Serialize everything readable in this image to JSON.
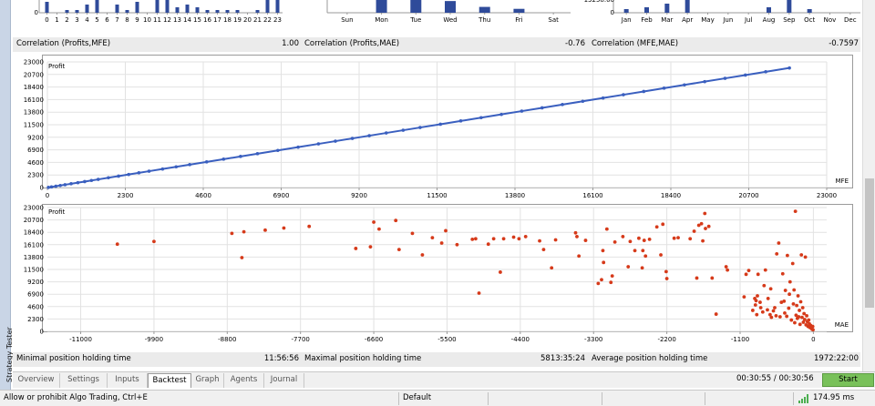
{
  "top_charts": [
    {
      "type": "bar",
      "categories": [
        "0",
        "1",
        "2",
        "3",
        "4",
        "5",
        "6",
        "7",
        "8",
        "9",
        "10",
        "11",
        "12",
        "13",
        "14",
        "15",
        "16",
        "17",
        "18",
        "19",
        "20",
        "21",
        "22",
        "23"
      ],
      "values": [
        4,
        0,
        1,
        1,
        3,
        5,
        0,
        3,
        1,
        4,
        0,
        5,
        5,
        2,
        3,
        2,
        1,
        1,
        1,
        1,
        0,
        1,
        7,
        9
      ],
      "ylim": [
        0,
        10
      ],
      "ytick": "0"
    },
    {
      "type": "bar",
      "categories": [
        "Sun",
        "Mon",
        "Tue",
        "Wed",
        "Thu",
        "Fri",
        "Sat"
      ],
      "values": [
        0,
        14,
        12,
        6,
        3,
        2,
        0
      ],
      "ylim": [
        0,
        14
      ]
    },
    {
      "type": "bar",
      "categories": [
        "Jan",
        "Feb",
        "Mar",
        "Apr",
        "May",
        "Jun",
        "Jul",
        "Aug",
        "Sep",
        "Oct",
        "Nov",
        "Dec"
      ],
      "values": [
        2,
        3,
        5,
        7,
        0,
        0,
        0,
        3,
        15,
        2,
        0,
        0
      ],
      "ylim": [
        0,
        15
      ],
      "ytick": "0",
      "partial_label": "13258.00"
    }
  ],
  "correlation": {
    "c1_label": "Correlation (Profits,MFE)",
    "c1_value": "1.00",
    "c2_label": "Correlation (Profits,MAE)",
    "c2_value": "-0.76",
    "c3_label": "Correlation (MFE,MAE)",
    "c3_value": "-0.7597"
  },
  "chart_data": [
    {
      "type": "scatter",
      "title": "Profit",
      "xlabel": "MFE",
      "color": "#3a5fbf",
      "connected": true,
      "xlim": [
        0,
        23000
      ],
      "ylim": [
        0,
        23000
      ],
      "xticks": [
        "0",
        "2300",
        "4600",
        "6900",
        "9200",
        "11500",
        "13800",
        "16100",
        "18400",
        "20700",
        "23000"
      ],
      "yticks": [
        "0",
        "2300",
        "4600",
        "6900",
        "9200",
        "11500",
        "13800",
        "16100",
        "18400",
        "20700",
        "23000"
      ],
      "points": [
        [
          30,
          30
        ],
        [
          120,
          110
        ],
        [
          250,
          240
        ],
        [
          380,
          370
        ],
        [
          520,
          510
        ],
        [
          700,
          690
        ],
        [
          900,
          890
        ],
        [
          1100,
          1090
        ],
        [
          1300,
          1290
        ],
        [
          1500,
          1490
        ],
        [
          1800,
          1790
        ],
        [
          2100,
          2090
        ],
        [
          2400,
          2390
        ],
        [
          2700,
          2690
        ],
        [
          3000,
          2990
        ],
        [
          3400,
          3390
        ],
        [
          3800,
          3790
        ],
        [
          4200,
          4190
        ],
        [
          4700,
          4690
        ],
        [
          5200,
          5190
        ],
        [
          5700,
          5690
        ],
        [
          6200,
          6190
        ],
        [
          6800,
          6790
        ],
        [
          7400,
          7390
        ],
        [
          8000,
          7990
        ],
        [
          8500,
          8490
        ],
        [
          9000,
          8990
        ],
        [
          9500,
          9490
        ],
        [
          10000,
          9990
        ],
        [
          10500,
          10490
        ],
        [
          11000,
          10990
        ],
        [
          11600,
          11590
        ],
        [
          12200,
          12190
        ],
        [
          12800,
          12790
        ],
        [
          13400,
          13390
        ],
        [
          14000,
          13990
        ],
        [
          14600,
          14590
        ],
        [
          15200,
          15190
        ],
        [
          15800,
          15790
        ],
        [
          16400,
          16390
        ],
        [
          17000,
          16990
        ],
        [
          17600,
          17590
        ],
        [
          18200,
          18190
        ],
        [
          18800,
          18790
        ],
        [
          19400,
          19390
        ],
        [
          20000,
          19990
        ],
        [
          20600,
          20590
        ],
        [
          21200,
          21190
        ],
        [
          21900,
          21890
        ]
      ]
    },
    {
      "type": "scatter",
      "title": "Profit",
      "xlabel": "MAE",
      "color": "#d63a1a",
      "connected": false,
      "xlim": [
        -11500,
        200
      ],
      "ylim": [
        0,
        23000
      ],
      "xticks": [
        "-11000",
        "-9900",
        "-8800",
        "-7700",
        "-6600",
        "-5500",
        "-4400",
        "-3300",
        "-2200",
        "-1100",
        "0"
      ],
      "xtick_values": [
        -11000,
        -9900,
        -8800,
        -7700,
        -6600,
        -5500,
        -4400,
        -3300,
        -2200,
        -1100,
        0
      ],
      "yticks": [
        "0",
        "2300",
        "4600",
        "6900",
        "9200",
        "11500",
        "13800",
        "16100",
        "18400",
        "20700",
        "23000"
      ],
      "points": [
        [
          -10450,
          16200
        ],
        [
          -9900,
          16700
        ],
        [
          -8730,
          18200
        ],
        [
          -8580,
          13700
        ],
        [
          -8550,
          18500
        ],
        [
          -8230,
          18800
        ],
        [
          -7950,
          19200
        ],
        [
          -7570,
          19500
        ],
        [
          -6870,
          15400
        ],
        [
          -6650,
          15700
        ],
        [
          -6600,
          20300
        ],
        [
          -6520,
          19000
        ],
        [
          -6270,
          20600
        ],
        [
          -6220,
          15200
        ],
        [
          -6020,
          18200
        ],
        [
          -5870,
          14200
        ],
        [
          -5720,
          17400
        ],
        [
          -5580,
          16400
        ],
        [
          -5520,
          18700
        ],
        [
          -5350,
          16100
        ],
        [
          -5120,
          17100
        ],
        [
          -5070,
          17200
        ],
        [
          -5020,
          7100
        ],
        [
          -4880,
          16200
        ],
        [
          -4800,
          17200
        ],
        [
          -4700,
          11000
        ],
        [
          -4650,
          17200
        ],
        [
          -4500,
          17500
        ],
        [
          -4420,
          17200
        ],
        [
          -4320,
          17600
        ],
        [
          -4110,
          16800
        ],
        [
          -4050,
          15200
        ],
        [
          -3930,
          11800
        ],
        [
          -3870,
          17000
        ],
        [
          -3570,
          18300
        ],
        [
          -3520,
          14000
        ],
        [
          -3550,
          17600
        ],
        [
          -3420,
          16900
        ],
        [
          -3230,
          8900
        ],
        [
          -3180,
          9600
        ],
        [
          -3160,
          15000
        ],
        [
          -3150,
          12800
        ],
        [
          -3100,
          19000
        ],
        [
          -3040,
          9100
        ],
        [
          -3020,
          10300
        ],
        [
          -2980,
          16600
        ],
        [
          -2860,
          17600
        ],
        [
          -2780,
          12000
        ],
        [
          -2750,
          16700
        ],
        [
          -2680,
          15000
        ],
        [
          -2620,
          17300
        ],
        [
          -2570,
          11800
        ],
        [
          -2560,
          15000
        ],
        [
          -2540,
          16900
        ],
        [
          -2520,
          14000
        ],
        [
          -2460,
          17100
        ],
        [
          -2350,
          19400
        ],
        [
          -2290,
          14200
        ],
        [
          -2260,
          19900
        ],
        [
          -2210,
          11100
        ],
        [
          -2200,
          9800
        ],
        [
          -2090,
          17300
        ],
        [
          -2030,
          17400
        ],
        [
          -1850,
          17200
        ],
        [
          -1790,
          18600
        ],
        [
          -1750,
          9900
        ],
        [
          -1720,
          19700
        ],
        [
          -1680,
          20000
        ],
        [
          -1660,
          16800
        ],
        [
          -1630,
          21900
        ],
        [
          -1620,
          19100
        ],
        [
          -1570,
          19500
        ],
        [
          -1520,
          9900
        ],
        [
          -1460,
          3200
        ],
        [
          -1310,
          12000
        ],
        [
          -1290,
          11400
        ],
        [
          -1040,
          6400
        ],
        [
          -1010,
          10600
        ],
        [
          -970,
          11300
        ],
        [
          -910,
          3900
        ],
        [
          -880,
          6100
        ],
        [
          -870,
          4900
        ],
        [
          -860,
          5700
        ],
        [
          -850,
          3100
        ],
        [
          -840,
          6600
        ],
        [
          -830,
          10600
        ],
        [
          -800,
          5400
        ],
        [
          -790,
          4400
        ],
        [
          -760,
          3600
        ],
        [
          -740,
          8500
        ],
        [
          -720,
          11400
        ],
        [
          -690,
          4000
        ],
        [
          -680,
          6100
        ],
        [
          -650,
          3100
        ],
        [
          -640,
          7900
        ],
        [
          -630,
          2600
        ],
        [
          -600,
          3800
        ],
        [
          -580,
          4400
        ],
        [
          -560,
          2900
        ],
        [
          -550,
          14400
        ],
        [
          -520,
          16400
        ],
        [
          -500,
          2700
        ],
        [
          -480,
          5400
        ],
        [
          -460,
          10700
        ],
        [
          -440,
          5600
        ],
        [
          -430,
          3400
        ],
        [
          -420,
          7600
        ],
        [
          -400,
          2800
        ],
        [
          -390,
          14100
        ],
        [
          -370,
          4300
        ],
        [
          -360,
          6900
        ],
        [
          -350,
          9200
        ],
        [
          -330,
          2100
        ],
        [
          -310,
          12600
        ],
        [
          -300,
          5100
        ],
        [
          -290,
          7700
        ],
        [
          -280,
          1600
        ],
        [
          -270,
          22300
        ],
        [
          -260,
          3000
        ],
        [
          -250,
          4800
        ],
        [
          -240,
          2400
        ],
        [
          -230,
          6600
        ],
        [
          -220,
          2700
        ],
        [
          -210,
          3900
        ],
        [
          -200,
          1300
        ],
        [
          -190,
          5500
        ],
        [
          -180,
          14200
        ],
        [
          -170,
          2600
        ],
        [
          -160,
          4400
        ],
        [
          -150,
          1700
        ],
        [
          -140,
          3300
        ],
        [
          -130,
          2200
        ],
        [
          -120,
          13800
        ],
        [
          -110,
          1200
        ],
        [
          -100,
          2900
        ],
        [
          -90,
          1800
        ],
        [
          -80,
          900
        ],
        [
          -70,
          2100
        ],
        [
          -60,
          1400
        ],
        [
          -50,
          700
        ],
        [
          -40,
          1100
        ],
        [
          -30,
          600
        ],
        [
          -20,
          400
        ],
        [
          -10,
          900
        ],
        [
          -5,
          300
        ]
      ]
    }
  ],
  "holding": {
    "min_label": "Minimal position holding time",
    "min_value": "11:56:56",
    "max_label": "Maximal position holding time",
    "max_value": "5813:35:24",
    "avg_label": "Average position holding time",
    "avg_value": "1972:22:00"
  },
  "tabs": [
    "Overview",
    "Settings",
    "Inputs",
    "Backtest",
    "Graph",
    "Agents",
    "Journal"
  ],
  "active_tab": "Backtest",
  "timer": "00:30:55 / 00:30:56",
  "start_label": "Start",
  "side_tab": "Strategy Tester",
  "status": {
    "hint": "Allow or prohibit Algo Trading, Ctrl+E",
    "profile": "Default",
    "ping": "174.95 ms"
  }
}
